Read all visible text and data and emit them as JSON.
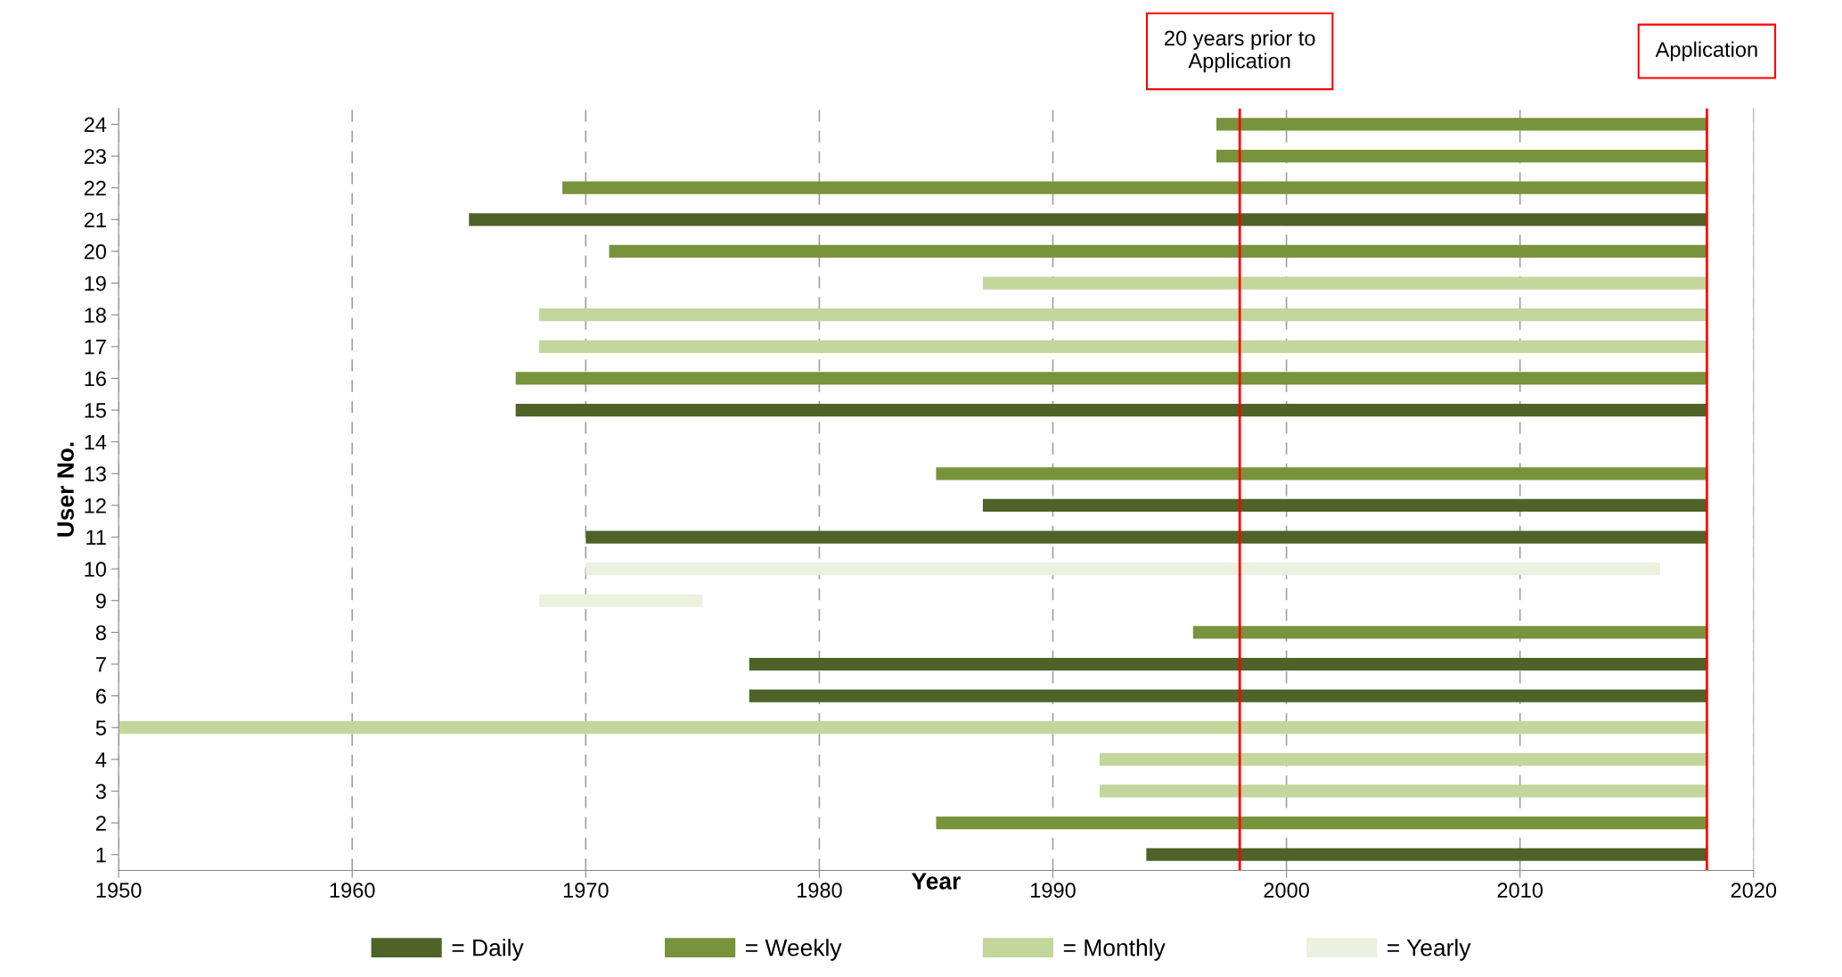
{
  "chart_data": {
    "type": "bar",
    "orientation": "horizontal",
    "xlabel": "Year",
    "ylabel": "User No.",
    "categories": [
      "24",
      "23",
      "22",
      "21",
      "20",
      "19",
      "18",
      "17",
      "16",
      "15",
      "14",
      "13",
      "12",
      "11",
      "10",
      "9",
      "8",
      "7",
      "6",
      "5",
      "4",
      "3",
      "2",
      "1"
    ],
    "series": [
      {
        "name": "= Daily",
        "color": "#4f6228",
        "base": [
          null,
          null,
          null,
          1965,
          null,
          null,
          null,
          null,
          null,
          1967,
          null,
          null,
          1987,
          1970,
          null,
          null,
          null,
          1977,
          1977,
          null,
          null,
          null,
          null,
          1994
        ],
        "values": [
          null,
          null,
          null,
          53,
          null,
          null,
          null,
          null,
          null,
          51,
          null,
          null,
          31,
          48,
          null,
          null,
          null,
          41,
          41,
          null,
          null,
          null,
          null,
          24
        ]
      },
      {
        "name": "= Weekly",
        "color": "#77933c",
        "base": [
          1997,
          1997,
          1969,
          null,
          1971,
          null,
          null,
          null,
          1967,
          null,
          null,
          1985,
          null,
          null,
          null,
          null,
          1996,
          null,
          null,
          null,
          null,
          null,
          1985,
          null
        ],
        "values": [
          21,
          21,
          49,
          null,
          47,
          null,
          null,
          null,
          51,
          null,
          null,
          33,
          null,
          null,
          null,
          null,
          22,
          null,
          null,
          null,
          null,
          null,
          33,
          null
        ]
      },
      {
        "name": "= Monthly",
        "color": "#c3d69b",
        "base": [
          null,
          null,
          null,
          null,
          null,
          1987,
          1968,
          1968,
          null,
          null,
          null,
          null,
          null,
          null,
          null,
          null,
          null,
          null,
          null,
          1950,
          1992,
          1992,
          null,
          null
        ],
        "values": [
          null,
          null,
          null,
          null,
          null,
          31,
          50,
          50,
          null,
          null,
          null,
          null,
          null,
          null,
          null,
          null,
          null,
          null,
          null,
          68,
          26,
          26,
          null,
          null
        ]
      },
      {
        "name": "= Yearly",
        "color": "#ebf1de",
        "base": [
          null,
          null,
          null,
          null,
          null,
          null,
          null,
          null,
          null,
          null,
          null,
          null,
          null,
          null,
          1970,
          1968,
          null,
          null,
          null,
          null,
          null,
          null,
          null,
          null
        ],
        "values": [
          null,
          null,
          null,
          null,
          null,
          null,
          null,
          null,
          null,
          null,
          null,
          null,
          null,
          null,
          46,
          7,
          null,
          null,
          null,
          null,
          null,
          null,
          null,
          null
        ]
      }
    ],
    "xlim": [
      1950,
      2020
    ],
    "xticks": [
      1950,
      1960,
      1970,
      1980,
      1990,
      2000,
      2010,
      2020
    ],
    "ref_lines": [
      {
        "axis": "x",
        "value": 1998,
        "label": "20 years prior to\nApplication",
        "color": "#ff0000"
      },
      {
        "axis": "x",
        "value": 2018,
        "label": "Application",
        "color": "#ff0000"
      }
    ],
    "grid": "x",
    "legend": "bottom"
  }
}
